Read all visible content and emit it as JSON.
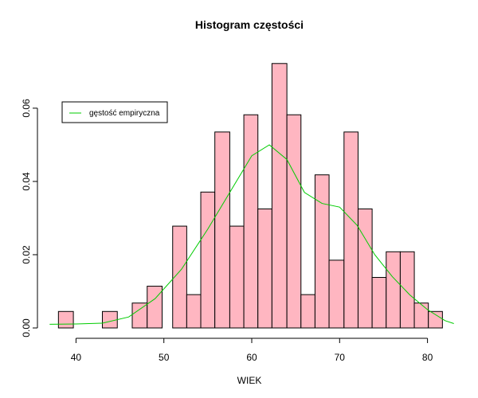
{
  "chart_data": {
    "type": "bar",
    "title": "Histogram częstości",
    "xlabel": "WIEK",
    "ylabel": "",
    "xlim": [
      36.7,
      83.3
    ],
    "ylim": [
      0,
      0.0765
    ],
    "xticks": [
      40,
      50,
      60,
      70,
      80
    ],
    "yticks": [
      "0.00",
      "0.02",
      "0.04",
      "0.06"
    ],
    "bar_color": "#FFB6C1",
    "bar_border": "#000000",
    "density_color": "#00CC00",
    "legend_position": "top-left",
    "bins": [
      {
        "from": 38,
        "to": 39.7,
        "density": 0.0045
      },
      {
        "from": 43,
        "to": 44.7,
        "density": 0.0045
      },
      {
        "from": 46.4,
        "to": 48.1,
        "density": 0.0068
      },
      {
        "from": 48.1,
        "to": 49.8,
        "density": 0.0114
      },
      {
        "from": 51,
        "to": 52.6,
        "density": 0.0278
      },
      {
        "from": 52.6,
        "to": 54.2,
        "density": 0.0091
      },
      {
        "from": 54.2,
        "to": 55.8,
        "density": 0.0371
      },
      {
        "from": 55.8,
        "to": 57.5,
        "density": 0.0535
      },
      {
        "from": 57.5,
        "to": 59.1,
        "density": 0.0278
      },
      {
        "from": 59.1,
        "to": 60.7,
        "density": 0.0582
      },
      {
        "from": 60.7,
        "to": 62.3,
        "density": 0.0325
      },
      {
        "from": 62.3,
        "to": 64.0,
        "density": 0.0722
      },
      {
        "from": 64.0,
        "to": 65.6,
        "density": 0.0582
      },
      {
        "from": 65.6,
        "to": 67.2,
        "density": 0.0091
      },
      {
        "from": 67.2,
        "to": 68.8,
        "density": 0.0418
      },
      {
        "from": 68.8,
        "to": 70.5,
        "density": 0.0185
      },
      {
        "from": 70.5,
        "to": 72.1,
        "density": 0.0535
      },
      {
        "from": 72.1,
        "to": 73.7,
        "density": 0.0325
      },
      {
        "from": 73.7,
        "to": 75.3,
        "density": 0.0138
      },
      {
        "from": 75.3,
        "to": 76.9,
        "density": 0.0208
      },
      {
        "from": 76.9,
        "to": 78.5,
        "density": 0.0208
      },
      {
        "from": 78.5,
        "to": 80.1,
        "density": 0.0068
      },
      {
        "from": 80.1,
        "to": 81.7,
        "density": 0.0045
      }
    ],
    "density": {
      "name": "gęstość empiryczna",
      "x": [
        37,
        40,
        43,
        46,
        49,
        52,
        55,
        58,
        60,
        62,
        64,
        66,
        68,
        70,
        72,
        74,
        76,
        78,
        80,
        82,
        83
      ],
      "y": [
        0.001,
        0.0011,
        0.0013,
        0.003,
        0.008,
        0.016,
        0.027,
        0.039,
        0.047,
        0.05,
        0.046,
        0.037,
        0.034,
        0.033,
        0.028,
        0.02,
        0.014,
        0.009,
        0.005,
        0.002,
        0.0012
      ]
    }
  }
}
